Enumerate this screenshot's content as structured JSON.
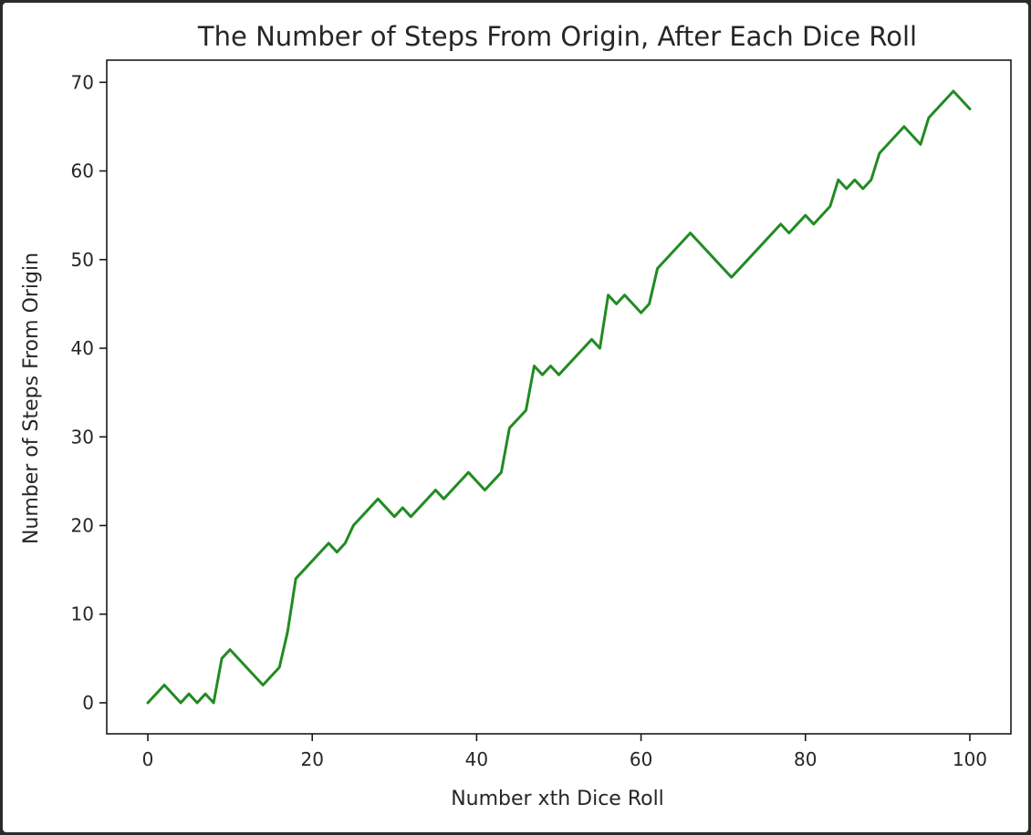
{
  "chart_data": {
    "type": "line",
    "title": "The Number of Steps From Origin, After Each Dice Roll",
    "xlabel": "Number xth Dice Roll",
    "ylabel": "Number of Steps From Origin",
    "xlim": [
      -5,
      105
    ],
    "ylim": [
      -3.5,
      72.5
    ],
    "xticks": [
      0,
      20,
      40,
      60,
      80,
      100
    ],
    "yticks": [
      0,
      10,
      20,
      30,
      40,
      50,
      60,
      70
    ],
    "grid": false,
    "series": [
      {
        "color": "#228b22",
        "x": [
          0,
          2,
          4,
          5,
          6,
          7,
          8,
          9,
          10,
          14,
          16,
          17,
          18,
          22,
          23,
          24,
          25,
          28,
          30,
          31,
          32,
          35,
          36,
          39,
          41,
          43,
          44,
          46,
          47,
          48,
          49,
          50,
          54,
          55,
          56,
          57,
          58,
          60,
          61,
          62,
          66,
          71,
          77,
          78,
          80,
          81,
          83,
          84,
          85,
          86,
          87,
          88,
          89,
          92,
          94,
          95,
          98,
          100
        ],
        "y": [
          0,
          2,
          0,
          1,
          0,
          1,
          0,
          5,
          6,
          2,
          4,
          8,
          14,
          18,
          17,
          18,
          20,
          23,
          21,
          22,
          21,
          24,
          23,
          26,
          24,
          26,
          31,
          33,
          38,
          37,
          38,
          37,
          41,
          40,
          46,
          45,
          46,
          44,
          45,
          49,
          53,
          48,
          54,
          53,
          55,
          54,
          56,
          59,
          58,
          59,
          58,
          59,
          62,
          65,
          63,
          66,
          69,
          67
        ]
      }
    ]
  }
}
